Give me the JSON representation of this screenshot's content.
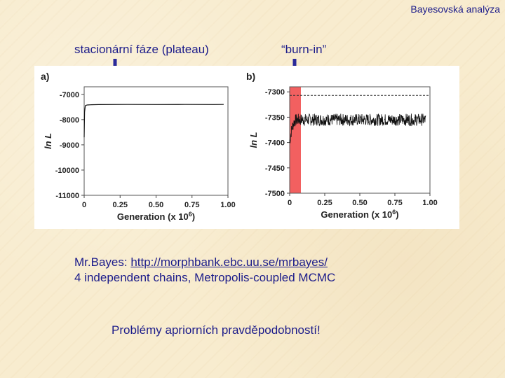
{
  "slide": {
    "title": "Bayesovská analýza",
    "label_left": "stacionární fáze (plateau)",
    "label_right": "“burn-in”",
    "mrbayes_prefix": "Mr.Bayes: ",
    "mrbayes_url": "http://morphbank.ebc.uu.se/mrbayes/",
    "chains_text": "4 independent chains, Metropolis-coupled MCMC",
    "warning": "Problémy apriorních pravděpodobností!"
  },
  "colors": {
    "text": "#1c1c8a",
    "arrow": "#2a2a9a",
    "burnin_highlight": "#f26060",
    "background": "#f8eccf"
  },
  "chart_data": [
    {
      "type": "line",
      "panel_label": "a)",
      "ylabel": "ln L",
      "xlabel_main": "Generation (x 10",
      "xlabel_sup": "6",
      "xlabel_close": ")",
      "xlim": [
        0,
        1.0
      ],
      "ylim": [
        -11000,
        -6700
      ],
      "x_ticks": [
        0,
        0.25,
        0.5,
        0.75,
        1.0
      ],
      "x_tick_labels": [
        "0",
        "0.25",
        "0.50",
        "0.75",
        "1.00"
      ],
      "y_ticks": [
        -7000,
        -8000,
        -9000,
        -10000,
        -11000
      ],
      "y_tick_labels": [
        "-7000",
        "-8000",
        "-9000",
        "-10000",
        "-11000"
      ],
      "series": [
        {
          "x": [
            0,
            0.003,
            0.008,
            0.02,
            0.05,
            0.1,
            0.3,
            0.5,
            0.7,
            0.9,
            0.97
          ],
          "y": [
            -8700,
            -7700,
            -7450,
            -7420,
            -7410,
            -7405,
            -7400,
            -7402,
            -7400,
            -7401,
            -7400
          ]
        }
      ]
    },
    {
      "type": "line",
      "panel_label": "b)",
      "ylabel": "ln L",
      "xlabel_main": "Generation (x 10",
      "xlabel_sup": "6",
      "xlabel_close": ")",
      "xlim": [
        0,
        1.0
      ],
      "ylim": [
        -7500,
        -7290
      ],
      "x_ticks": [
        0,
        0.25,
        0.5,
        0.75,
        1.0
      ],
      "x_tick_labels": [
        "0",
        "0.25",
        "0.50",
        "0.75",
        "1.00"
      ],
      "y_ticks": [
        -7300,
        -7350,
        -7400,
        -7450,
        -7500
      ],
      "y_tick_labels": [
        "-7300",
        "-7350",
        "-7400",
        "-7450",
        "-7500"
      ],
      "burnin_range": [
        0,
        0.08
      ],
      "reference_line_y": -7307,
      "trace": {
        "x_start": 0.0,
        "x_end": 0.97,
        "mean_start": -7400,
        "mean_plateau": -7355,
        "amplitude": 12
      }
    }
  ]
}
